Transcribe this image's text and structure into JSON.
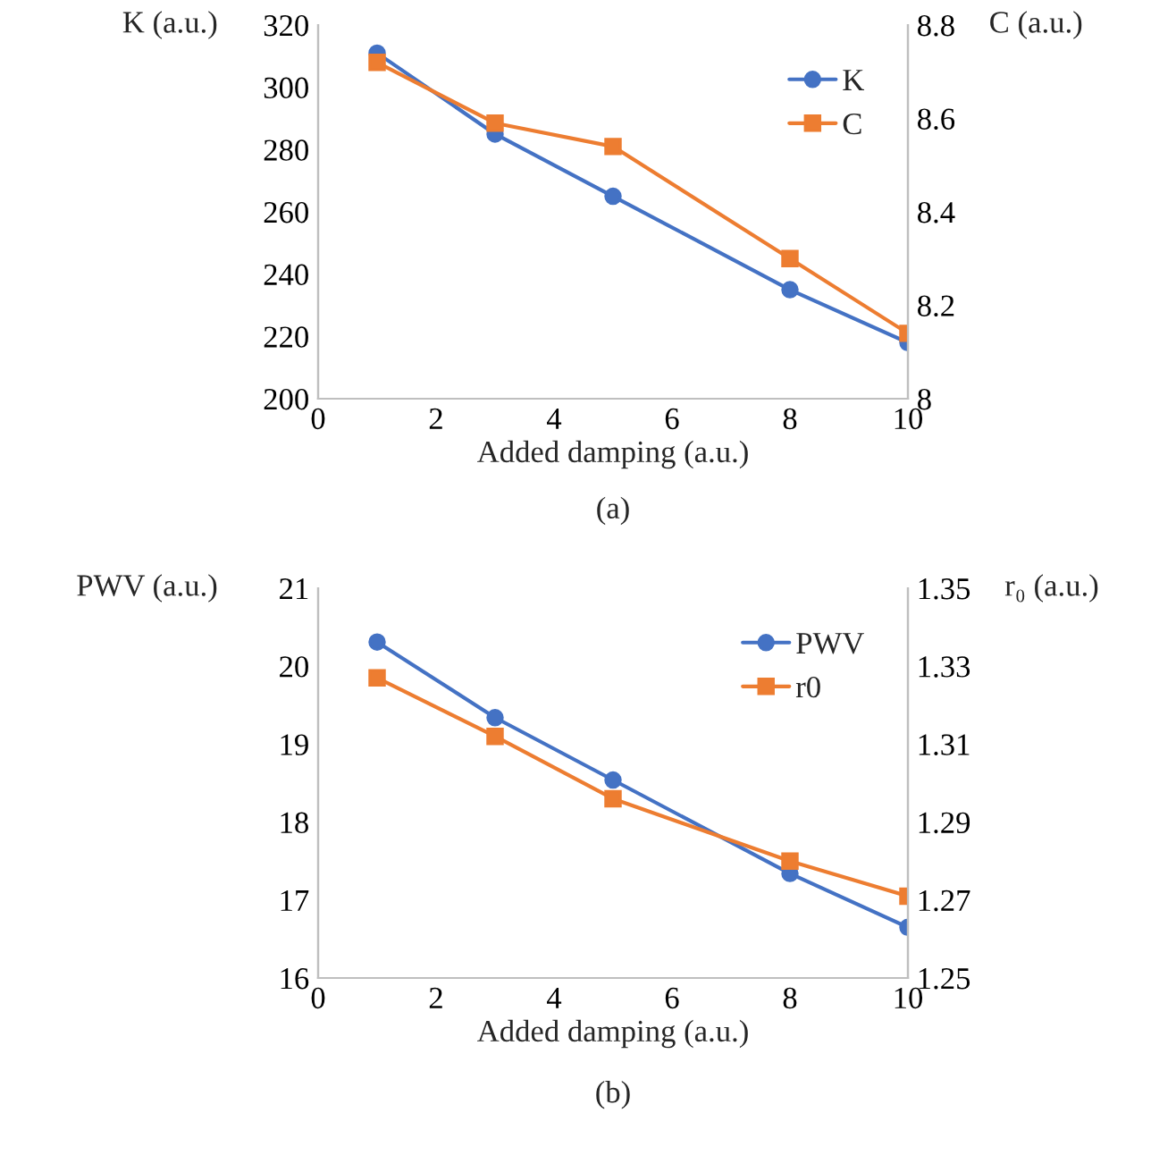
{
  "chart_data": [
    {
      "type": "line",
      "xlabel": "Added damping (a.u.)",
      "ylabel": "K (a.u.)",
      "y2label": "C (a.u.)",
      "annotations": [
        "(a)"
      ],
      "x": [
        1,
        3,
        5,
        8,
        10
      ],
      "xlim": [
        0,
        10
      ],
      "xticks": [
        0,
        2,
        4,
        6,
        8,
        10
      ],
      "ylim": [
        200,
        320
      ],
      "yticks": [
        200,
        220,
        240,
        260,
        280,
        300,
        320
      ],
      "y2lim": [
        8,
        8.8
      ],
      "y2ticks": [
        {
          "value": 8,
          "label": "8"
        },
        8.2,
        8.4,
        8.6,
        8.8
      ],
      "grid": false,
      "legend": "top right",
      "series": [
        {
          "name": "K",
          "color": "#4472c4",
          "marker": "circle",
          "values": [
            311,
            285,
            265,
            235,
            218
          ]
        },
        {
          "name": "C",
          "color": "#ed7d31",
          "marker": "square",
          "axis": "y2",
          "values": [
            8.72,
            8.59,
            8.54,
            8.3,
            8.14
          ]
        }
      ]
    },
    {
      "type": "line",
      "xlabel": "Added damping (a.u.)",
      "ylabel": "PWV (a.u.)",
      "y2label": "r₀ (a.u.)",
      "annotations": [
        "(b)"
      ],
      "x": [
        1,
        3,
        5,
        8,
        10
      ],
      "xlim": [
        0,
        10
      ],
      "xticks": [
        0,
        2,
        4,
        6,
        8,
        10
      ],
      "ylim": [
        16,
        21
      ],
      "yticks": [
        16,
        17,
        18,
        19,
        20,
        21
      ],
      "y2lim": [
        1.25,
        1.35
      ],
      "y2ticks": [
        1.25,
        1.27,
        1.29,
        1.31,
        1.33,
        1.35
      ],
      "grid": false,
      "legend": "top right",
      "series": [
        {
          "name": "PWV",
          "color": "#4472c4",
          "marker": "circle",
          "values": [
            20.31,
            19.34,
            18.54,
            17.34,
            16.65
          ]
        },
        {
          "name": "r0",
          "color": "#ed7d31",
          "marker": "square",
          "axis": "y2",
          "values": [
            1.327,
            1.312,
            1.296,
            1.28,
            1.271
          ]
        }
      ]
    }
  ]
}
